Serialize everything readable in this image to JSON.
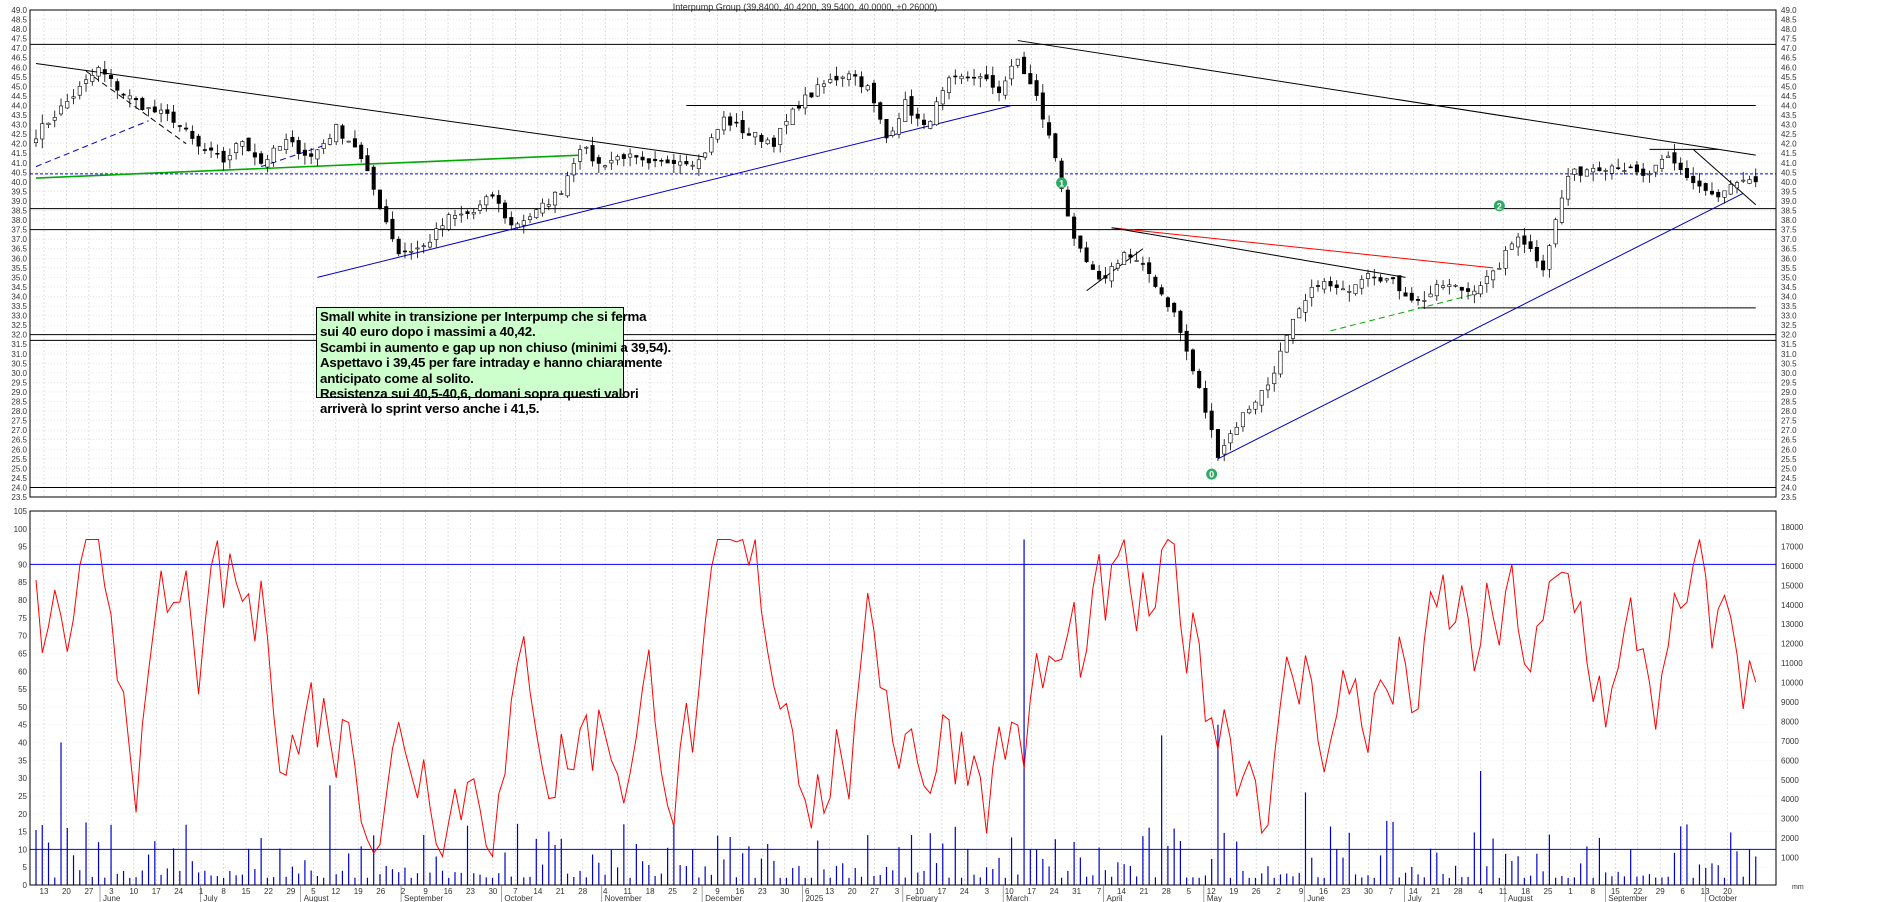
{
  "chart_data": [
    {
      "type": "candlestick",
      "title": "Interpump Group (39,8400, 40.4200, 39.5400, 40.0000, +0.26000)",
      "ylim": [
        23.5,
        49.0
      ],
      "ytick_step": 0.5,
      "grid": true,
      "x_month_labels": [
        "June",
        "July",
        "August",
        "September",
        "October",
        "November",
        "December",
        "2025",
        "February",
        "March",
        "April",
        "May",
        "June",
        "July",
        "August",
        "September",
        "October"
      ],
      "x_day_labels": [
        "13",
        "20",
        "27",
        "3",
        "10",
        "17",
        "24",
        "1",
        "8",
        "15",
        "22",
        "29",
        "5",
        "12",
        "19",
        "26",
        "2",
        "9",
        "16",
        "23",
        "30",
        "7",
        "14",
        "21",
        "28",
        "4",
        "11",
        "18",
        "25",
        "2",
        "9",
        "16",
        "23",
        "30",
        "6",
        "13",
        "20",
        "27",
        "3",
        "10",
        "17",
        "24",
        "3",
        "10",
        "17",
        "24",
        "31",
        "7",
        "14",
        "21",
        "28",
        "5",
        "12",
        "19",
        "26",
        "2",
        "9",
        "16",
        "23",
        "30",
        "7",
        "14",
        "21",
        "28",
        "4",
        "11",
        "18",
        "25",
        "1",
        "8",
        "15",
        "22",
        "29",
        "6",
        "13",
        "20"
      ],
      "price_path": [
        [
          0,
          42.5
        ],
        [
          5,
          44.2
        ],
        [
          10,
          45.9
        ],
        [
          14,
          44.6
        ],
        [
          18,
          43.8
        ],
        [
          22,
          43.3
        ],
        [
          26,
          41.8
        ],
        [
          30,
          41.1
        ],
        [
          33,
          42.2
        ],
        [
          36,
          41.0
        ],
        [
          40,
          42.1
        ],
        [
          44,
          41.3
        ],
        [
          48,
          42.8
        ],
        [
          51,
          41.9
        ],
        [
          54,
          39.6
        ],
        [
          58,
          36.3
        ],
        [
          62,
          36.6
        ],
        [
          66,
          38.1
        ],
        [
          70,
          38.4
        ],
        [
          73,
          39.3
        ],
        [
          76,
          37.7
        ],
        [
          80,
          38.4
        ],
        [
          84,
          39.6
        ],
        [
          87,
          41.9
        ],
        [
          90,
          40.9
        ],
        [
          94,
          41.4
        ],
        [
          98,
          40.8
        ],
        [
          102,
          41.2
        ],
        [
          106,
          41.1
        ],
        [
          110,
          43.3
        ],
        [
          114,
          42.5
        ],
        [
          118,
          42.1
        ],
        [
          122,
          44.1
        ],
        [
          126,
          45.1
        ],
        [
          130,
          45.8
        ],
        [
          133,
          44.9
        ],
        [
          136,
          42.3
        ],
        [
          139,
          44.1
        ],
        [
          142,
          42.8
        ],
        [
          146,
          45.2
        ],
        [
          150,
          45.6
        ],
        [
          154,
          44.8
        ],
        [
          157,
          46.4
        ],
        [
          160,
          44.4
        ],
        [
          163,
          41.3
        ],
        [
          166,
          36.8
        ],
        [
          170,
          34.7
        ],
        [
          174,
          36.3
        ],
        [
          178,
          35.2
        ],
        [
          182,
          33.1
        ],
        [
          186,
          29.1
        ],
        [
          189,
          25.8
        ],
        [
          193,
          27.8
        ],
        [
          197,
          29.4
        ],
        [
          201,
          32.6
        ],
        [
          205,
          34.8
        ],
        [
          209,
          34.2
        ],
        [
          213,
          35.4
        ],
        [
          217,
          34.7
        ],
        [
          221,
          33.7
        ],
        [
          225,
          34.6
        ],
        [
          229,
          34.3
        ],
        [
          233,
          35.1
        ],
        [
          237,
          37.3
        ],
        [
          241,
          35.6
        ],
        [
          245,
          40.3
        ],
        [
          249,
          40.8
        ],
        [
          253,
          40.9
        ],
        [
          257,
          40.2
        ],
        [
          261,
          41.2
        ],
        [
          265,
          40.0
        ],
        [
          269,
          39.1
        ],
        [
          271,
          39.8
        ],
        [
          275,
          40.0
        ]
      ],
      "trendlines": [
        {
          "color": "#000000",
          "from": [
            0,
            46.2
          ],
          "to": [
            107,
            41.3
          ]
        },
        {
          "color": "#000000",
          "from": [
            157,
            47.4
          ],
          "to": [
            275,
            41.4
          ]
        },
        {
          "color": "#000000",
          "from": [
            104,
            44.0
          ],
          "to": [
            275,
            44.0
          ]
        },
        {
          "color": "#0000cc",
          "from": [
            45,
            35.0
          ],
          "to": [
            156,
            44.0
          ]
        },
        {
          "color": "#0000cc",
          "from": [
            189,
            25.5
          ],
          "to": [
            273,
            39.4
          ]
        },
        {
          "color": "#00aa00",
          "from": [
            0,
            40.2
          ],
          "to": [
            87,
            41.4
          ]
        },
        {
          "color": "#ff0000",
          "from": [
            172,
            37.6
          ],
          "to": [
            233,
            35.5
          ]
        },
        {
          "color": "#000000",
          "from": [
            172,
            37.6
          ],
          "to": [
            219,
            35.0
          ]
        },
        {
          "color": "#000000",
          "from": [
            168,
            34.3
          ],
          "to": [
            177,
            36.5
          ]
        },
        {
          "color": "#000000",
          "from": [
            221,
            33.4
          ],
          "to": [
            275,
            33.4
          ]
        },
        {
          "color": "#000000",
          "from": [
            258,
            41.7
          ],
          "to": [
            269,
            41.7
          ]
        },
        {
          "color": "#000000",
          "from": [
            265,
            41.7
          ],
          "to": [
            275,
            38.8
          ]
        },
        {
          "color": "#0000cc",
          "dash": true,
          "from": [
            0,
            40.8
          ],
          "to": [
            18,
            43.2
          ]
        },
        {
          "color": "#0000cc",
          "dash": true,
          "from": [
            36,
            40.8
          ],
          "to": [
            46,
            41.9
          ]
        },
        {
          "color": "#000000",
          "dash": true,
          "from": [
            8,
            45.8
          ],
          "to": [
            24,
            42.0
          ]
        },
        {
          "color": "#00aa00",
          "dash": true,
          "from": [
            207,
            32.2
          ],
          "to": [
            231,
            34.2
          ]
        }
      ],
      "horizontal_levels": [
        {
          "value": 47.2,
          "color": "#000000"
        },
        {
          "value": 38.6,
          "color": "#000000"
        },
        {
          "value": 37.5,
          "color": "#000000"
        },
        {
          "value": 32.0,
          "color": "#000000"
        },
        {
          "value": 31.7,
          "color": "#000000"
        },
        {
          "value": 24.0,
          "color": "#000000"
        },
        {
          "value": 40.42,
          "color": "#0000ff",
          "dash": true
        }
      ],
      "markers": [
        {
          "label": "1",
          "i": 164,
          "value": 39.95
        },
        {
          "label": "2",
          "i": 234,
          "value": 38.75
        },
        {
          "label": "0",
          "i": 188,
          "value": 24.7
        }
      ],
      "annotation": [
        "Small white in transizione per Interpump che si ferma",
        "sui 40 euro dopo i massimi a 40,42.",
        "Scambi in aumento e gap up non chiuso (minimi a 39,54).",
        "Aspettavo i 39,45 per fare intraday e hanno chiaramente",
        "anticipato come al solito.",
        "Resistenza sui 40,5-40,6, domani sopra questi valori",
        "arriverà lo sprint  verso anche i 41,5."
      ],
      "colors": {
        "up": "#ffffff",
        "down": "#000000",
        "annotation_bg": "#ccffcc"
      }
    },
    {
      "type": "bar+line",
      "left_ylim": [
        0,
        105
      ],
      "left_yticks": [
        0,
        5,
        10,
        15,
        20,
        25,
        30,
        35,
        40,
        45,
        50,
        55,
        60,
        65,
        70,
        75,
        80,
        85,
        90,
        95,
        100,
        105
      ],
      "right_yticks": [
        1000,
        2000,
        3000,
        4000,
        5000,
        6000,
        7000,
        8000,
        9000,
        10000,
        11000,
        12000,
        13000,
        14000,
        15000,
        16000,
        17000,
        18000
      ],
      "levels": [
        90,
        10
      ],
      "oscillator_color": "#ff0000",
      "volume_color": "#0000cc",
      "volume_spikes": [
        [
          4,
          40
        ],
        [
          5,
          16
        ],
        [
          47,
          28
        ],
        [
          133,
          14
        ],
        [
          158,
          97
        ],
        [
          180,
          42
        ],
        [
          189,
          45
        ],
        [
          203,
          26
        ],
        [
          231,
          32
        ],
        [
          262,
          9
        ],
        [
          275,
          8
        ]
      ],
      "right_axis_cut_label": "mm"
    }
  ]
}
